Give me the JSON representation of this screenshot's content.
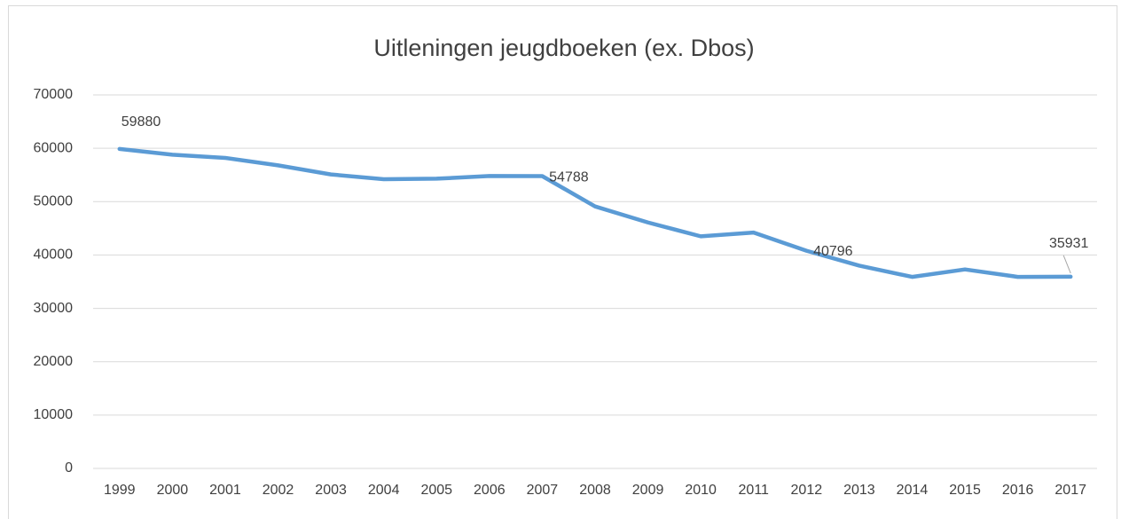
{
  "chart_data": {
    "type": "line",
    "title": "Uitleningen jeugdboeken (ex. Dbos)",
    "categories": [
      "1999",
      "2000",
      "2001",
      "2002",
      "2003",
      "2004",
      "2005",
      "2006",
      "2007",
      "2008",
      "2009",
      "2010",
      "2011",
      "2012",
      "2013",
      "2014",
      "2015",
      "2016",
      "2017"
    ],
    "series": [
      {
        "name": "Uitleningen",
        "color": "#5b9bd5",
        "values": [
          59880,
          58800,
          58200,
          56800,
          55100,
          54200,
          54300,
          54800,
          54788,
          49100,
          46100,
          43500,
          44200,
          40796,
          38000,
          35900,
          37300,
          35900,
          35931
        ],
        "value_labels": [
          "59880",
          null,
          null,
          null,
          null,
          null,
          null,
          null,
          "54788",
          null,
          null,
          null,
          null,
          "40796",
          null,
          null,
          null,
          null,
          "35931"
        ]
      }
    ],
    "ylim": [
      0,
      70000
    ],
    "yticks": [
      0,
      10000,
      20000,
      30000,
      40000,
      50000,
      60000,
      70000
    ],
    "grid": true
  }
}
